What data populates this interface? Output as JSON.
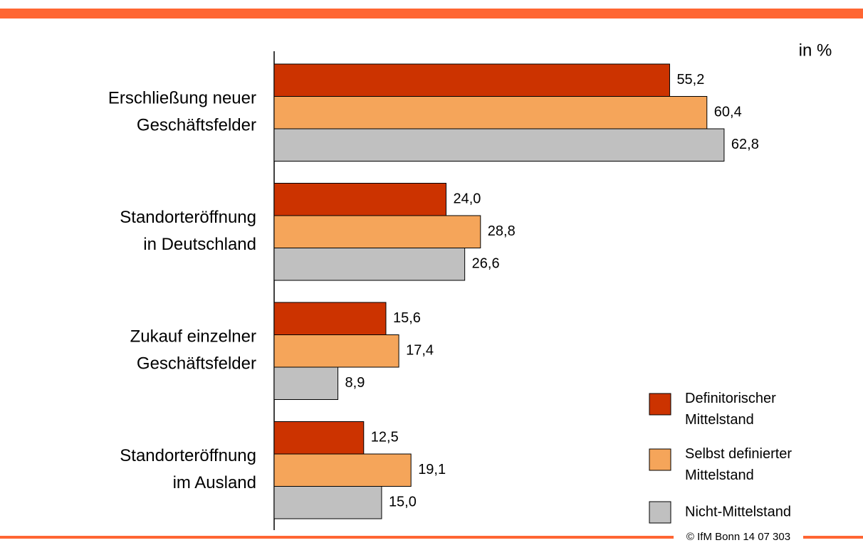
{
  "chart_data": {
    "type": "hbar",
    "unit": "in %",
    "footer": "© IfM Bonn 14 07 303",
    "categories": [
      "Erschließung neuer\nGeschäftsfelder",
      "Standorteröffnung\nin Deutschland",
      "Zukauf einzelner\nGeschäftsfelder",
      "Standorteröffnung\nim Ausland"
    ],
    "xlim": [
      0,
      80
    ],
    "series": [
      {
        "name": "Definitorischer\nMittelstand",
        "color": "#cc3300",
        "values": [
          55.2,
          24.0,
          15.6,
          12.5
        ],
        "value_labels": [
          "55,2",
          "24,0",
          "15,6",
          "12,5"
        ]
      },
      {
        "name": "Selbst definierter\nMittelstand",
        "color": "#f5a55a",
        "values": [
          60.4,
          28.8,
          17.4,
          19.1
        ],
        "value_labels": [
          "60,4",
          "28,8",
          "17,4",
          "19,1"
        ]
      },
      {
        "name": "Nicht-Mittelstand",
        "color": "#c0c0c0",
        "values": [
          62.8,
          26.6,
          8.9,
          15.0
        ],
        "value_labels": [
          "62,8",
          "26,6",
          "8,9",
          "15,0"
        ]
      }
    ]
  }
}
